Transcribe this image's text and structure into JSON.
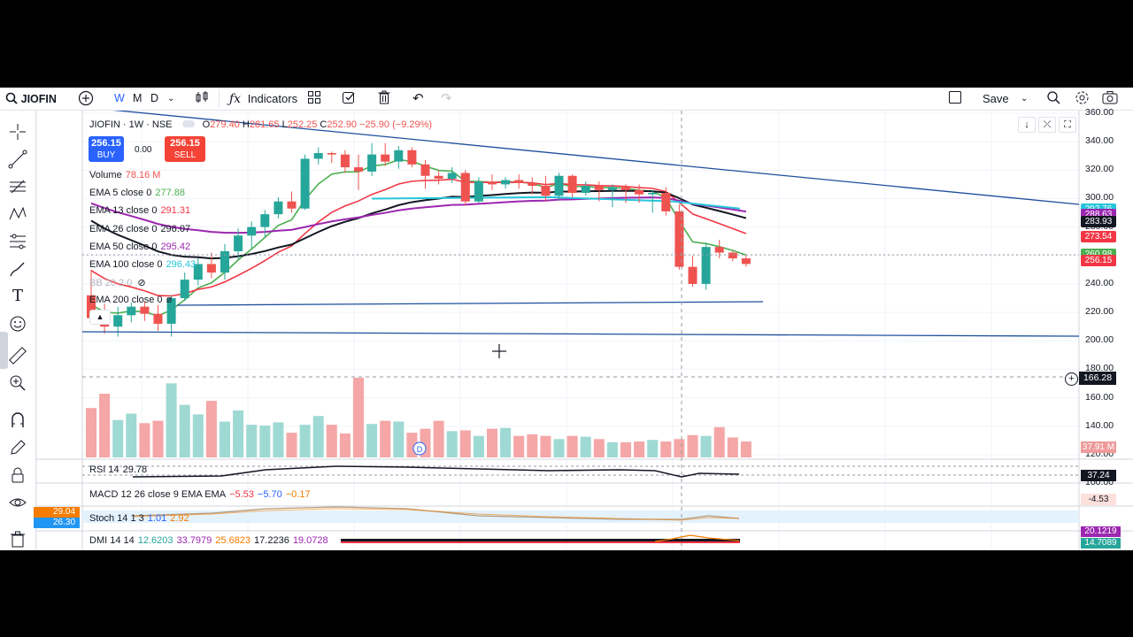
{
  "toolbar": {
    "symbol": "JIOFIN",
    "interval_w": "W",
    "interval_m": "M",
    "interval_d": "D",
    "indicators_label": "Indicators",
    "save_label": "Save"
  },
  "legend": {
    "title": "JIOFIN · 1W · NSE",
    "open_label": "O",
    "open": "279.40",
    "high_label": "H",
    "high": "281.65",
    "low_label": "L",
    "low": "252.25",
    "close_label": "C",
    "close": "252.90",
    "change": "−25.90 (−9.29%)",
    "buy_price": "256.15",
    "buy_label": "BUY",
    "spread": "0.00",
    "sell_price": "256.15",
    "sell_label": "SELL",
    "volume_label": "Volume",
    "volume_value": "78.16 M",
    "ema5_label": "EMA 5 close 0",
    "ema5_value": "277.88",
    "ema13_label": "EMA 13 close 0",
    "ema13_value": "291.31",
    "ema26_label": "EMA 26 close 0",
    "ema26_value": "296.07",
    "ema50_label": "EMA 50 close 0",
    "ema50_value": "295.42",
    "ema100_label": "EMA 100 close 0",
    "ema100_value": "296.43",
    "bb_label": "BB 20 2 0",
    "ema200_label": "EMA 200 close 0",
    "ema200_value": "ø"
  },
  "price_axis": {
    "ticks": [
      "360.00",
      "340.00",
      "320.00",
      "300.00",
      "280.00",
      "260.00",
      "240.00",
      "220.00",
      "200.00",
      "180.00",
      "160.00",
      "140.00",
      "120.00",
      "100.00"
    ],
    "crosshair_price": "166.28",
    "tags": [
      {
        "value": "292.76",
        "color": "#26c6da"
      },
      {
        "value": "288.63",
        "color": "#9c27b0"
      },
      {
        "value": "283.93",
        "color": "#131722"
      },
      {
        "value": "273.54",
        "color": "#f23645"
      },
      {
        "value": "260.98",
        "color": "#4caf50"
      },
      {
        "value": "256.15",
        "color": "#f23645"
      }
    ],
    "volume_tag": "37.91 M",
    "rsi_tag": "37.24",
    "macd_tag": "-4.53",
    "dmi_tag1": "20.1219",
    "dmi_tag2": "14.7089"
  },
  "left_tags": {
    "stoch_k": "29.04",
    "stoch_d": "26.30"
  },
  "panes": {
    "rsi_label": "RSI 14",
    "rsi_value": "29.78",
    "macd_label": "MACD 12 26 close 9 EMA EMA",
    "macd_v1": "−5.53",
    "macd_v2": "−5.70",
    "macd_v3": "−0.17",
    "stoch_label": "Stoch 14 1 3",
    "stoch_v1": "1.01",
    "stoch_v2": "2.92",
    "dmi_label": "DMI 14 14",
    "dmi_v1": "12.6203",
    "dmi_v2": "33.7979",
    "dmi_v3": "25.6823",
    "dmi_v4": "17.2236",
    "dmi_v5": "19.0728"
  },
  "dividend_marker": "D",
  "colors": {
    "up": "#26a69a",
    "down": "#ef5350",
    "ema5": "#4caf50",
    "ema13": "#f23645",
    "ema26": "#131722",
    "ema50": "#9c27b0",
    "ema100": "#26c6da",
    "trend": "#1e4f9c"
  },
  "chart_data": {
    "type": "candlestick",
    "y_range": [
      100,
      360
    ],
    "candles": [
      {
        "o": 232,
        "h": 250,
        "l": 212,
        "c": 216
      },
      {
        "o": 216,
        "h": 226,
        "l": 205,
        "c": 210
      },
      {
        "o": 210,
        "h": 224,
        "l": 203,
        "c": 218
      },
      {
        "o": 218,
        "h": 227,
        "l": 213,
        "c": 224
      },
      {
        "o": 224,
        "h": 228,
        "l": 214,
        "c": 219
      },
      {
        "o": 219,
        "h": 225,
        "l": 207,
        "c": 212
      },
      {
        "o": 212,
        "h": 232,
        "l": 203,
        "c": 230
      },
      {
        "o": 230,
        "h": 248,
        "l": 228,
        "c": 243
      },
      {
        "o": 243,
        "h": 258,
        "l": 239,
        "c": 254
      },
      {
        "o": 254,
        "h": 262,
        "l": 244,
        "c": 248
      },
      {
        "o": 248,
        "h": 268,
        "l": 243,
        "c": 263
      },
      {
        "o": 263,
        "h": 279,
        "l": 257,
        "c": 274
      },
      {
        "o": 274,
        "h": 284,
        "l": 265,
        "c": 280
      },
      {
        "o": 280,
        "h": 292,
        "l": 273,
        "c": 289
      },
      {
        "o": 289,
        "h": 301,
        "l": 286,
        "c": 298
      },
      {
        "o": 298,
        "h": 305,
        "l": 290,
        "c": 293
      },
      {
        "o": 293,
        "h": 331,
        "l": 292,
        "c": 328
      },
      {
        "o": 328,
        "h": 336,
        "l": 324,
        "c": 332
      },
      {
        "o": 332,
        "h": 333,
        "l": 325,
        "c": 331
      },
      {
        "o": 331,
        "h": 334,
        "l": 318,
        "c": 322
      },
      {
        "o": 322,
        "h": 331,
        "l": 306,
        "c": 319
      },
      {
        "o": 319,
        "h": 339,
        "l": 316,
        "c": 331
      },
      {
        "o": 331,
        "h": 339,
        "l": 323,
        "c": 326
      },
      {
        "o": 326,
        "h": 337,
        "l": 321,
        "c": 334
      },
      {
        "o": 334,
        "h": 336,
        "l": 322,
        "c": 324
      },
      {
        "o": 324,
        "h": 327,
        "l": 307,
        "c": 316
      },
      {
        "o": 316,
        "h": 320,
        "l": 310,
        "c": 314
      },
      {
        "o": 314,
        "h": 322,
        "l": 311,
        "c": 318
      },
      {
        "o": 318,
        "h": 320,
        "l": 295,
        "c": 298
      },
      {
        "o": 298,
        "h": 315,
        "l": 297,
        "c": 312
      },
      {
        "o": 312,
        "h": 317,
        "l": 306,
        "c": 310
      },
      {
        "o": 310,
        "h": 315,
        "l": 307,
        "c": 313
      },
      {
        "o": 313,
        "h": 317,
        "l": 307,
        "c": 311
      },
      {
        "o": 311,
        "h": 315,
        "l": 303,
        "c": 309
      },
      {
        "o": 309,
        "h": 316,
        "l": 298,
        "c": 302
      },
      {
        "o": 302,
        "h": 318,
        "l": 299,
        "c": 316
      },
      {
        "o": 316,
        "h": 317,
        "l": 301,
        "c": 304
      },
      {
        "o": 304,
        "h": 312,
        "l": 302,
        "c": 309
      },
      {
        "o": 309,
        "h": 312,
        "l": 298,
        "c": 306
      },
      {
        "o": 306,
        "h": 310,
        "l": 294,
        "c": 308
      },
      {
        "o": 308,
        "h": 310,
        "l": 297,
        "c": 306
      },
      {
        "o": 306,
        "h": 310,
        "l": 297,
        "c": 303
      },
      {
        "o": 303,
        "h": 306,
        "l": 290,
        "c": 304
      },
      {
        "o": 304,
        "h": 308,
        "l": 288,
        "c": 291
      },
      {
        "o": 291,
        "h": 296,
        "l": 250,
        "c": 252
      },
      {
        "o": 252,
        "h": 260,
        "l": 238,
        "c": 240
      },
      {
        "o": 240,
        "h": 269,
        "l": 236,
        "c": 266
      },
      {
        "o": 266,
        "h": 271,
        "l": 258,
        "c": 262
      },
      {
        "o": 262,
        "h": 263,
        "l": 256,
        "c": 258
      },
      {
        "o": 258,
        "h": 260,
        "l": 252,
        "c": 254
      }
    ],
    "volume_relative": [
      0.62,
      0.8,
      0.47,
      0.55,
      0.43,
      0.46,
      0.93,
      0.66,
      0.54,
      0.71,
      0.45,
      0.59,
      0.41,
      0.4,
      0.44,
      0.31,
      0.41,
      0.52,
      0.41,
      0.3,
      1.0,
      0.42,
      0.46,
      0.45,
      0.31,
      0.36,
      0.46,
      0.33,
      0.34,
      0.27,
      0.36,
      0.37,
      0.27,
      0.29,
      0.27,
      0.23,
      0.27,
      0.26,
      0.23,
      0.19,
      0.19,
      0.2,
      0.22,
      0.2,
      0.23,
      0.28,
      0.27,
      0.38,
      0.25,
      0.2
    ]
  }
}
